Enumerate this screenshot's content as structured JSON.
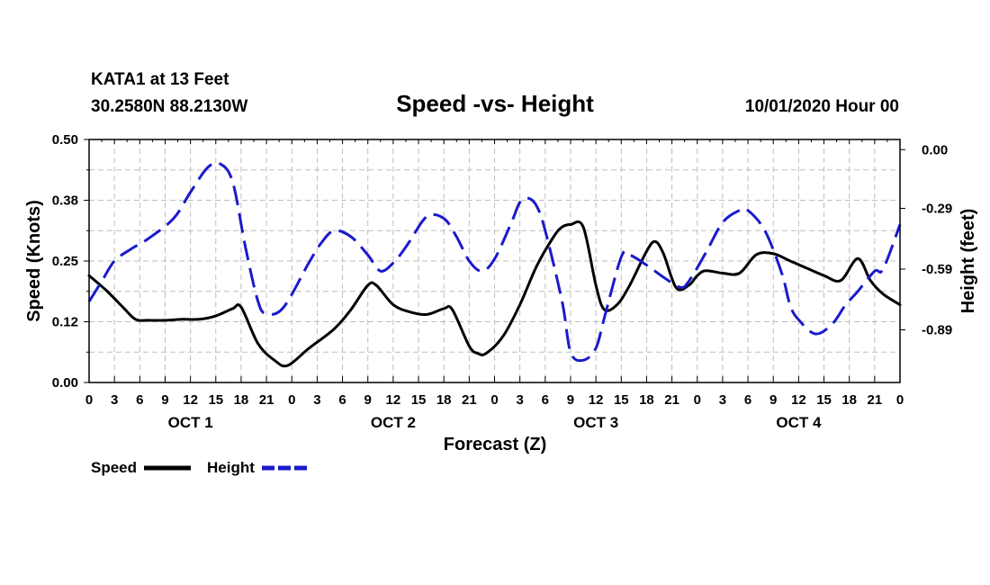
{
  "header": {
    "station": "KATA1 at 13 Feet",
    "coords": "30.2580N 88.2130W",
    "title": "Speed -vs- Height",
    "datetime": "10/01/2020 Hour 00"
  },
  "legend": {
    "speed_label": "Speed",
    "height_label": "Height"
  },
  "colors": {
    "speed": "#000000",
    "height": "#1a1acc"
  },
  "chart_data": {
    "type": "line",
    "title": "Speed -vs- Height",
    "xlabel": "Forecast (Z)",
    "ylabel": "Speed (Knots)",
    "y2label": "Height (feet)",
    "xlim": [
      0,
      96
    ],
    "ylim": [
      0,
      0.5
    ],
    "y2lim": [
      -1.15,
      0.05
    ],
    "x_tick_labels": [
      "0",
      "3",
      "6",
      "9",
      "12",
      "15",
      "18",
      "21",
      "0",
      "3",
      "6",
      "9",
      "12",
      "15",
      "18",
      "21",
      "0",
      "3",
      "6",
      "9",
      "12",
      "15",
      "18",
      "21",
      "0",
      "3",
      "6",
      "9",
      "12",
      "15",
      "18",
      "21",
      "0"
    ],
    "y_tick_values": [
      0.0,
      0.125,
      0.25,
      0.375,
      0.5
    ],
    "y_tick_labels": [
      "0.00",
      "0.12",
      "0.25",
      "0.38",
      "0.50"
    ],
    "y2_tick_values": [
      0.0,
      -0.29,
      -0.59,
      -0.89
    ],
    "y2_tick_labels": [
      "0.00",
      "-0.29",
      "-0.59",
      "-0.89"
    ],
    "day_labels": [
      {
        "hour": 12,
        "label": "OCT 1"
      },
      {
        "hour": 36,
        "label": "OCT 2"
      },
      {
        "hour": 60,
        "label": "OCT 3"
      },
      {
        "hour": 84,
        "label": "OCT 4"
      }
    ],
    "series": [
      {
        "name": "Speed",
        "axis": "left",
        "x": [
          0,
          2,
          4,
          5.5,
          7,
          9,
          11,
          13,
          15,
          17,
          18,
          20,
          22,
          23.5,
          26,
          29,
          31,
          33,
          34,
          36,
          38,
          40,
          42,
          43,
          45,
          46,
          47,
          49,
          51,
          53,
          55,
          56,
          57,
          58.5,
          60,
          61,
          62.5,
          64,
          66,
          67,
          68,
          69.5,
          71,
          72,
          73,
          75,
          77,
          79,
          81,
          83,
          85,
          87,
          89,
          91,
          92.5,
          94,
          96
        ],
        "y": [
          0.22,
          0.19,
          0.155,
          0.13,
          0.128,
          0.128,
          0.13,
          0.13,
          0.137,
          0.152,
          0.155,
          0.08,
          0.045,
          0.035,
          0.07,
          0.11,
          0.15,
          0.2,
          0.2,
          0.16,
          0.145,
          0.14,
          0.152,
          0.15,
          0.075,
          0.06,
          0.06,
          0.095,
          0.16,
          0.24,
          0.3,
          0.32,
          0.325,
          0.32,
          0.2,
          0.15,
          0.16,
          0.2,
          0.27,
          0.29,
          0.265,
          0.195,
          0.2,
          0.22,
          0.23,
          0.225,
          0.225,
          0.263,
          0.265,
          0.25,
          0.235,
          0.22,
          0.21,
          0.255,
          0.21,
          0.182,
          0.16
        ]
      },
      {
        "name": "Height",
        "axis": "right",
        "x": [
          0,
          1.5,
          3,
          5,
          7,
          10,
          12,
          14,
          15.5,
          17,
          18.5,
          20,
          21,
          23,
          26,
          27.5,
          29,
          31,
          33,
          34.5,
          36,
          37,
          38,
          40,
          42,
          43.5,
          45,
          46.5,
          48,
          50,
          51,
          52,
          53,
          54,
          56,
          57,
          58.5,
          60,
          61,
          63,
          64,
          66,
          68,
          70,
          71,
          73,
          75,
          77,
          78,
          80,
          82,
          83,
          84,
          86,
          88,
          89.5,
          91,
          93,
          94,
          96
        ],
        "y": [
          -0.75,
          -0.65,
          -0.55,
          -0.49,
          -0.44,
          -0.34,
          -0.21,
          -0.09,
          -0.07,
          -0.16,
          -0.48,
          -0.75,
          -0.81,
          -0.78,
          -0.56,
          -0.46,
          -0.4,
          -0.43,
          -0.52,
          -0.6,
          -0.56,
          -0.51,
          -0.45,
          -0.33,
          -0.34,
          -0.43,
          -0.55,
          -0.6,
          -0.54,
          -0.36,
          -0.26,
          -0.24,
          -0.28,
          -0.4,
          -0.75,
          -1.0,
          -1.04,
          -0.98,
          -0.83,
          -0.53,
          -0.52,
          -0.57,
          -0.63,
          -0.68,
          -0.65,
          -0.51,
          -0.36,
          -0.3,
          -0.3,
          -0.4,
          -0.61,
          -0.77,
          -0.84,
          -0.91,
          -0.86,
          -0.77,
          -0.7,
          -0.6,
          -0.59,
          -0.37
        ]
      }
    ]
  }
}
